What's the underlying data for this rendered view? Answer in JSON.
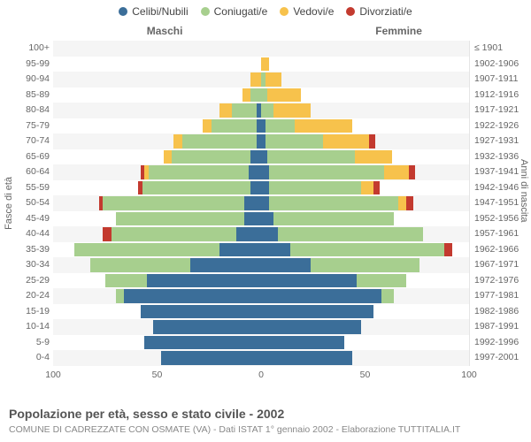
{
  "chart": {
    "type": "population-pyramid",
    "legend": [
      {
        "label": "Celibi/Nubili",
        "color": "#3b6e99"
      },
      {
        "label": "Coniugati/e",
        "color": "#a7cf8e"
      },
      {
        "label": "Vedovi/e",
        "color": "#f7c24c"
      },
      {
        "label": "Divorziati/e",
        "color": "#c33a2f"
      }
    ],
    "header_male": "Maschi",
    "header_female": "Femmine",
    "y_title_left": "Fasce di età",
    "y_title_right": "Anni di nascita",
    "x_max": 100,
    "x_ticks": [
      100,
      50,
      0,
      50,
      100
    ],
    "row_height": 17.5,
    "background_alt": [
      "#f5f5f5",
      "#ffffff"
    ],
    "grid_color": "#e5e5e5",
    "center_line_color": "#999999",
    "tick_font_size": 10.5,
    "label_font_size": 10.5,
    "legend_font_size": 12,
    "rows": [
      {
        "age": "100+",
        "birth": "≤ 1901",
        "m": [
          0,
          0,
          0,
          0
        ],
        "f": [
          0,
          0,
          0,
          0
        ]
      },
      {
        "age": "95-99",
        "birth": "1902-1906",
        "m": [
          0,
          0,
          0,
          0
        ],
        "f": [
          0,
          0,
          4,
          0
        ]
      },
      {
        "age": "90-94",
        "birth": "1907-1911",
        "m": [
          0,
          0,
          5,
          0
        ],
        "f": [
          0,
          2,
          8,
          0
        ]
      },
      {
        "age": "85-89",
        "birth": "1912-1916",
        "m": [
          0,
          5,
          4,
          0
        ],
        "f": [
          0,
          3,
          16,
          0
        ]
      },
      {
        "age": "80-84",
        "birth": "1917-1921",
        "m": [
          2,
          12,
          6,
          0
        ],
        "f": [
          0,
          6,
          18,
          0
        ]
      },
      {
        "age": "75-79",
        "birth": "1922-1926",
        "m": [
          2,
          22,
          4,
          0
        ],
        "f": [
          2,
          14,
          28,
          0
        ]
      },
      {
        "age": "70-74",
        "birth": "1927-1931",
        "m": [
          2,
          36,
          4,
          0
        ],
        "f": [
          2,
          28,
          22,
          3
        ]
      },
      {
        "age": "65-69",
        "birth": "1932-1936",
        "m": [
          5,
          38,
          4,
          0
        ],
        "f": [
          3,
          42,
          18,
          0
        ]
      },
      {
        "age": "60-64",
        "birth": "1937-1941",
        "m": [
          6,
          48,
          2,
          2
        ],
        "f": [
          4,
          55,
          12,
          3
        ]
      },
      {
        "age": "55-59",
        "birth": "1942-1946",
        "m": [
          5,
          52,
          0,
          2
        ],
        "f": [
          4,
          44,
          6,
          3
        ]
      },
      {
        "age": "50-54",
        "birth": "1947-1951",
        "m": [
          8,
          68,
          0,
          2
        ],
        "f": [
          4,
          62,
          4,
          3
        ]
      },
      {
        "age": "45-49",
        "birth": "1952-1956",
        "m": [
          8,
          62,
          0,
          0
        ],
        "f": [
          6,
          58,
          0,
          0
        ]
      },
      {
        "age": "40-44",
        "birth": "1957-1961",
        "m": [
          12,
          60,
          0,
          4
        ],
        "f": [
          8,
          70,
          0,
          0
        ]
      },
      {
        "age": "35-39",
        "birth": "1962-1966",
        "m": [
          20,
          70,
          0,
          0
        ],
        "f": [
          14,
          74,
          0,
          4
        ]
      },
      {
        "age": "30-34",
        "birth": "1967-1971",
        "m": [
          34,
          48,
          0,
          0
        ],
        "f": [
          24,
          52,
          0,
          0
        ]
      },
      {
        "age": "25-29",
        "birth": "1972-1976",
        "m": [
          55,
          20,
          0,
          0
        ],
        "f": [
          46,
          24,
          0,
          0
        ]
      },
      {
        "age": "20-24",
        "birth": "1977-1981",
        "m": [
          66,
          4,
          0,
          0
        ],
        "f": [
          58,
          6,
          0,
          0
        ]
      },
      {
        "age": "15-19",
        "birth": "1982-1986",
        "m": [
          58,
          0,
          0,
          0
        ],
        "f": [
          54,
          0,
          0,
          0
        ]
      },
      {
        "age": "10-14",
        "birth": "1987-1991",
        "m": [
          52,
          0,
          0,
          0
        ],
        "f": [
          48,
          0,
          0,
          0
        ]
      },
      {
        "age": "5-9",
        "birth": "1992-1996",
        "m": [
          56,
          0,
          0,
          0
        ],
        "f": [
          40,
          0,
          0,
          0
        ]
      },
      {
        "age": "0-4",
        "birth": "1997-2001",
        "m": [
          48,
          0,
          0,
          0
        ],
        "f": [
          44,
          0,
          0,
          0
        ]
      }
    ],
    "footer_title": "Popolazione per età, sesso e stato civile - 2002",
    "footer_sub": "COMUNE DI CADREZZATE CON OSMATE (VA) - Dati ISTAT 1° gennaio 2002 - Elaborazione TUTTITALIA.IT"
  }
}
